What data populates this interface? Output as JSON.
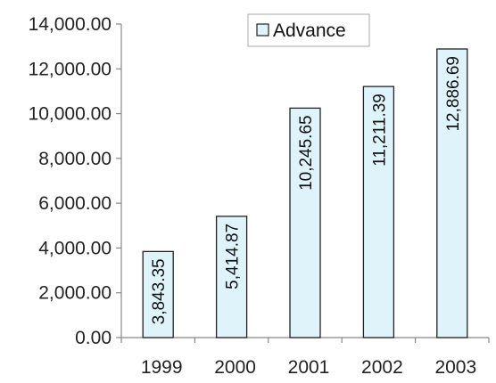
{
  "chart_data": {
    "type": "bar",
    "categories": [
      "1999",
      "2000",
      "2001",
      "2002",
      "2003"
    ],
    "series": [
      {
        "name": "Advance",
        "values": [
          3843.35,
          5414.87,
          10245.65,
          11211.39,
          12886.69
        ],
        "value_labels": [
          "3,843.35",
          "5,414.87",
          "10,245.65",
          "11,211.39",
          "12,886.69"
        ]
      }
    ],
    "ylim": [
      0,
      14000
    ],
    "yticks": [
      0,
      2000,
      4000,
      6000,
      8000,
      10000,
      12000,
      14000
    ],
    "ytick_labels": [
      "0.00",
      "2,000.00",
      "4,000.00",
      "6,000.00",
      "8,000.00",
      "10,000.00",
      "12,000.00",
      "14,000.00"
    ],
    "title": "",
    "xlabel": "",
    "ylabel": "",
    "legend_position": "top-center",
    "grid": false,
    "colors": {
      "bar_fill": "#dff3fb",
      "bar_stroke": "#222222",
      "axis": "#888888"
    }
  }
}
